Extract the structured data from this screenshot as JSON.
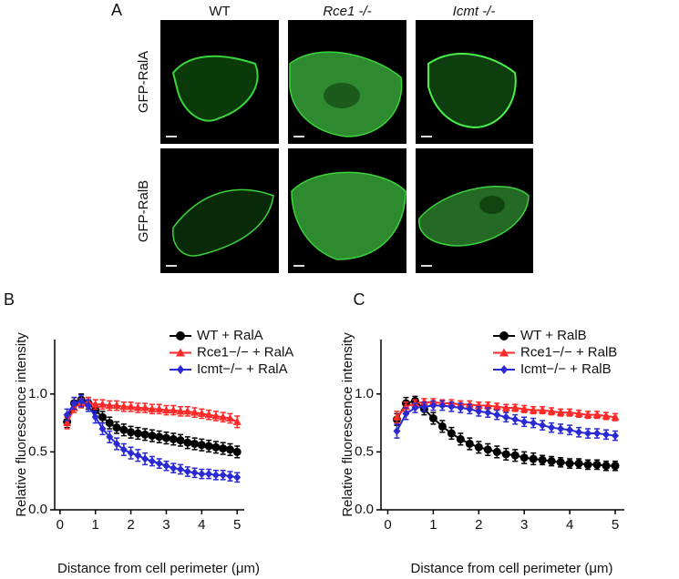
{
  "panel_labels": [
    "A",
    "B",
    "C"
  ],
  "panel_a": {
    "columns": [
      "WT",
      "Rce1 -/-",
      "Icmt -/-"
    ],
    "rows": [
      "GFP-RalA",
      "GFP-RalB"
    ]
  },
  "chart_data": [
    {
      "type": "line",
      "ylabel": "Relative fluorescence intensity",
      "xlabel": "Distance from cell perimeter (μm)",
      "xlim": [
        -0.15,
        5.2
      ],
      "xticks": [
        0,
        1,
        2,
        3,
        4,
        5
      ],
      "ylim": [
        0,
        1.47
      ],
      "yticks": [
        {
          "value": 0,
          "label": "0.0"
        },
        {
          "value": 0.5,
          "label": "0.5"
        },
        {
          "value": 1,
          "label": "1.0"
        }
      ],
      "x": [
        0.2,
        0.4,
        0.6,
        0.8,
        1.0,
        1.2,
        1.4,
        1.6,
        1.8,
        2.0,
        2.2,
        2.4,
        2.6,
        2.8,
        3.0,
        3.2,
        3.4,
        3.6,
        3.8,
        4.0,
        4.2,
        4.4,
        4.6,
        4.8,
        5.0
      ],
      "series": [
        {
          "name": "WT + RalA",
          "color": "#000000",
          "marker": "circle",
          "values": [
            0.76,
            0.92,
            0.95,
            0.92,
            0.86,
            0.8,
            0.75,
            0.71,
            0.69,
            0.67,
            0.66,
            0.65,
            0.64,
            0.63,
            0.62,
            0.61,
            0.6,
            0.58,
            0.57,
            0.56,
            0.55,
            0.54,
            0.53,
            0.52,
            0.5
          ],
          "errors": [
            0.05,
            0.05,
            0.05,
            0.05,
            0.05,
            0.05,
            0.05,
            0.05,
            0.05,
            0.05,
            0.05,
            0.05,
            0.05,
            0.05,
            0.05,
            0.05,
            0.05,
            0.05,
            0.05,
            0.05,
            0.05,
            0.05,
            0.05,
            0.05,
            0.05
          ]
        },
        {
          "name": "Rce1−/− + RalA",
          "color": "#ff2a2a",
          "marker": "triangle",
          "values": [
            0.75,
            0.88,
            0.92,
            0.93,
            0.91,
            0.91,
            0.9,
            0.9,
            0.89,
            0.89,
            0.88,
            0.88,
            0.87,
            0.87,
            0.86,
            0.86,
            0.85,
            0.85,
            0.84,
            0.83,
            0.82,
            0.81,
            0.8,
            0.79,
            0.76
          ],
          "errors": [
            0.05,
            0.04,
            0.04,
            0.04,
            0.04,
            0.04,
            0.04,
            0.04,
            0.04,
            0.04,
            0.04,
            0.04,
            0.04,
            0.04,
            0.04,
            0.04,
            0.04,
            0.04,
            0.04,
            0.04,
            0.04,
            0.04,
            0.04,
            0.04,
            0.05
          ]
        },
        {
          "name": "Icmt−/− + RalA",
          "color": "#2a2ad4",
          "marker": "diamond",
          "values": [
            0.82,
            0.92,
            0.94,
            0.9,
            0.8,
            0.7,
            0.63,
            0.57,
            0.52,
            0.49,
            0.47,
            0.44,
            0.42,
            0.4,
            0.38,
            0.36,
            0.35,
            0.33,
            0.32,
            0.31,
            0.31,
            0.3,
            0.3,
            0.29,
            0.28
          ],
          "errors": [
            0.05,
            0.05,
            0.05,
            0.05,
            0.05,
            0.05,
            0.05,
            0.05,
            0.05,
            0.05,
            0.05,
            0.05,
            0.04,
            0.04,
            0.04,
            0.04,
            0.04,
            0.04,
            0.04,
            0.04,
            0.04,
            0.04,
            0.04,
            0.04,
            0.04
          ]
        }
      ]
    },
    {
      "type": "line",
      "ylabel": "Relative fluorescence intensity",
      "xlabel": "Distance from cell perimeter (μm)",
      "xlim": [
        -0.15,
        5.2
      ],
      "xticks": [
        0,
        1,
        2,
        3,
        4,
        5
      ],
      "ylim": [
        0,
        1.47
      ],
      "yticks": [
        {
          "value": 0,
          "label": "0.0"
        },
        {
          "value": 0.5,
          "label": "0.5"
        },
        {
          "value": 1,
          "label": "1.0"
        }
      ],
      "x": [
        0.2,
        0.4,
        0.6,
        0.8,
        1.0,
        1.2,
        1.4,
        1.6,
        1.8,
        2.0,
        2.2,
        2.4,
        2.6,
        2.8,
        3.0,
        3.2,
        3.4,
        3.6,
        3.8,
        4.0,
        4.2,
        4.4,
        4.6,
        4.8,
        5.0
      ],
      "series": [
        {
          "name": "WT + RalB",
          "color": "#000000",
          "marker": "circle",
          "values": [
            0.78,
            0.92,
            0.94,
            0.87,
            0.79,
            0.72,
            0.66,
            0.61,
            0.57,
            0.54,
            0.52,
            0.5,
            0.48,
            0.47,
            0.45,
            0.44,
            0.43,
            0.42,
            0.41,
            0.4,
            0.4,
            0.39,
            0.39,
            0.38,
            0.38
          ],
          "errors": [
            0.05,
            0.05,
            0.04,
            0.05,
            0.05,
            0.05,
            0.05,
            0.05,
            0.05,
            0.05,
            0.05,
            0.05,
            0.05,
            0.05,
            0.05,
            0.05,
            0.04,
            0.04,
            0.04,
            0.04,
            0.04,
            0.04,
            0.04,
            0.04,
            0.04
          ]
        },
        {
          "name": "Rce1−/− + RalB",
          "color": "#ff2a2a",
          "marker": "triangle",
          "values": [
            0.8,
            0.89,
            0.92,
            0.93,
            0.93,
            0.92,
            0.92,
            0.91,
            0.91,
            0.9,
            0.9,
            0.89,
            0.88,
            0.88,
            0.87,
            0.86,
            0.86,
            0.85,
            0.84,
            0.84,
            0.83,
            0.82,
            0.82,
            0.81,
            0.8
          ],
          "errors": [
            0.05,
            0.04,
            0.03,
            0.03,
            0.03,
            0.03,
            0.03,
            0.03,
            0.03,
            0.03,
            0.03,
            0.03,
            0.03,
            0.03,
            0.03,
            0.03,
            0.03,
            0.03,
            0.03,
            0.03,
            0.03,
            0.03,
            0.03,
            0.03,
            0.03
          ]
        },
        {
          "name": "Icmt−/− + RalB",
          "color": "#2a2ad4",
          "marker": "diamond",
          "values": [
            0.68,
            0.83,
            0.88,
            0.89,
            0.9,
            0.9,
            0.89,
            0.88,
            0.87,
            0.85,
            0.84,
            0.82,
            0.8,
            0.78,
            0.76,
            0.75,
            0.73,
            0.71,
            0.7,
            0.69,
            0.67,
            0.66,
            0.66,
            0.65,
            0.64
          ],
          "errors": [
            0.06,
            0.05,
            0.04,
            0.04,
            0.04,
            0.04,
            0.04,
            0.04,
            0.04,
            0.04,
            0.04,
            0.04,
            0.04,
            0.04,
            0.04,
            0.04,
            0.04,
            0.04,
            0.04,
            0.04,
            0.04,
            0.04,
            0.04,
            0.04,
            0.04
          ]
        }
      ]
    }
  ]
}
